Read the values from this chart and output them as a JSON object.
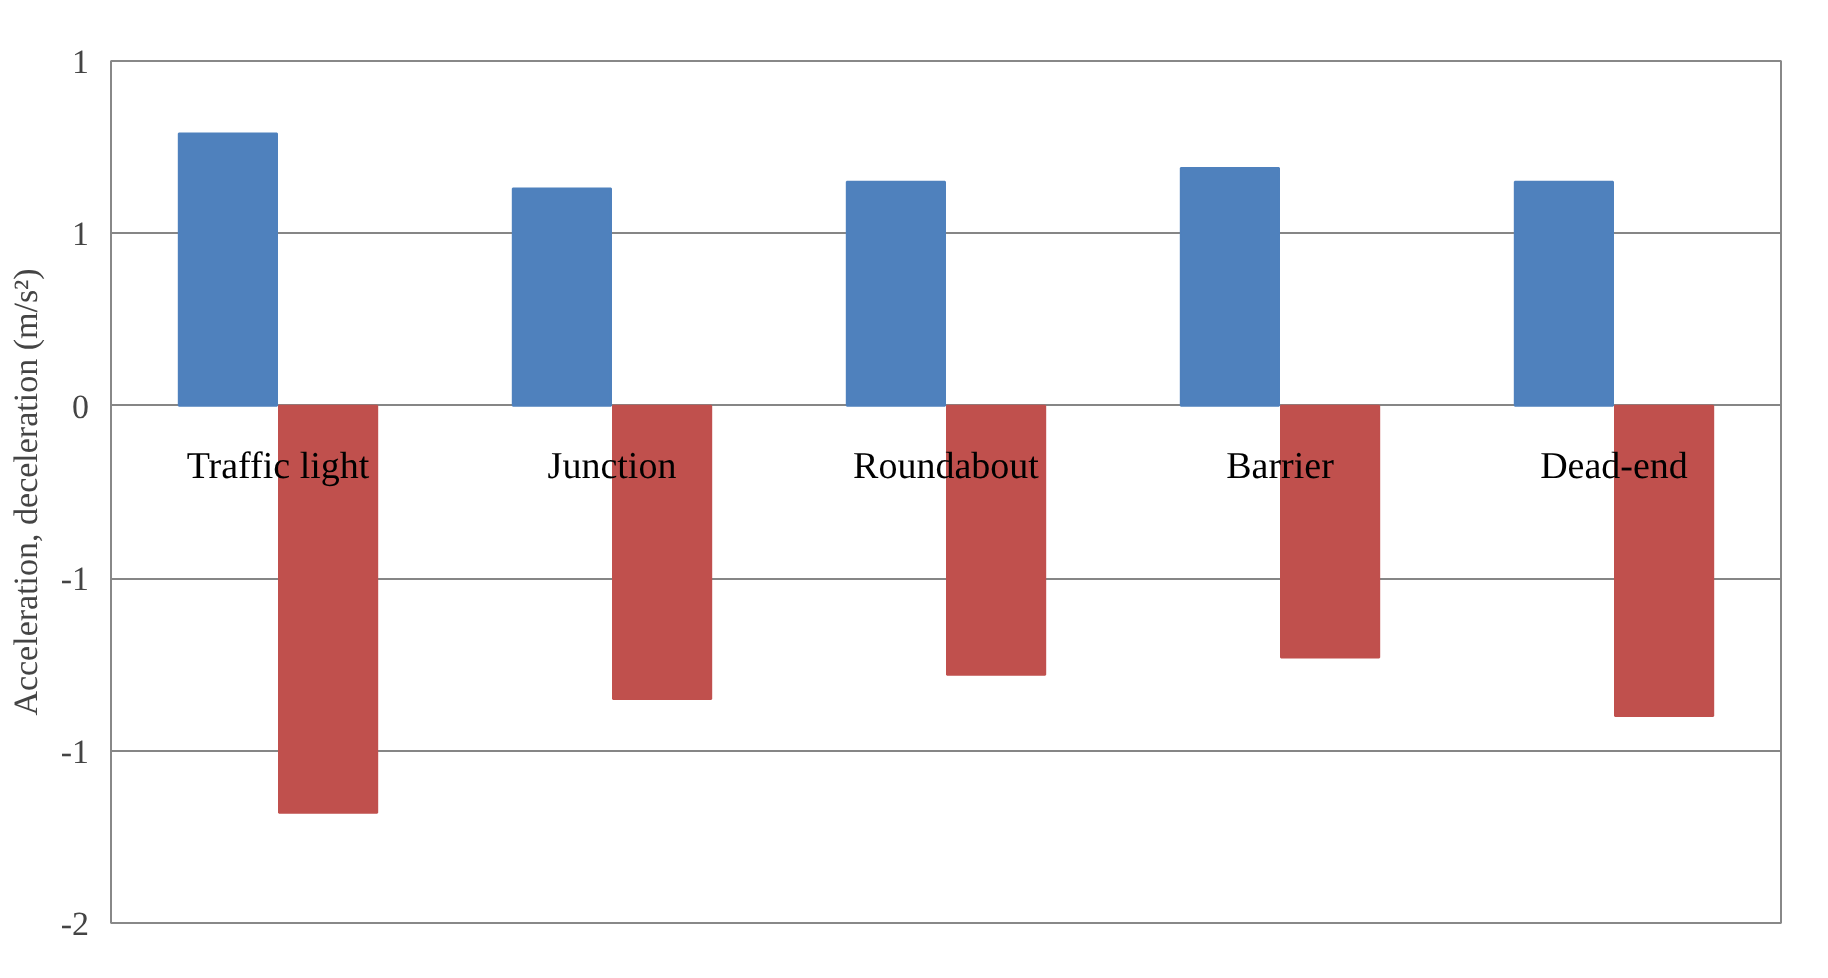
{
  "chart_data": {
    "type": "bar",
    "ylabel": "Acceleration, deceleration (m/s²)",
    "categories": [
      "Traffic light",
      "Junction",
      "Roundabout",
      "Barrier",
      "Dead-end"
    ],
    "series": [
      {
        "color": "#4f81bd",
        "values": [
          0.79,
          0.63,
          0.65,
          0.69,
          0.65
        ]
      },
      {
        "color": "#c0504d",
        "values": [
          -1.18,
          -0.85,
          -0.78,
          -0.73,
          -0.9
        ]
      }
    ],
    "ylim": [
      -1.5,
      1.0
    ],
    "yticks": [
      {
        "value": 1.0,
        "label": "1"
      },
      {
        "value": 0.5,
        "label": "1"
      },
      0,
      {
        "value": -0.5,
        "label": "-1"
      },
      {
        "value": -1.0,
        "label": "-1"
      },
      {
        "value": -1.5,
        "label": "-2"
      }
    ],
    "grid": "y"
  }
}
